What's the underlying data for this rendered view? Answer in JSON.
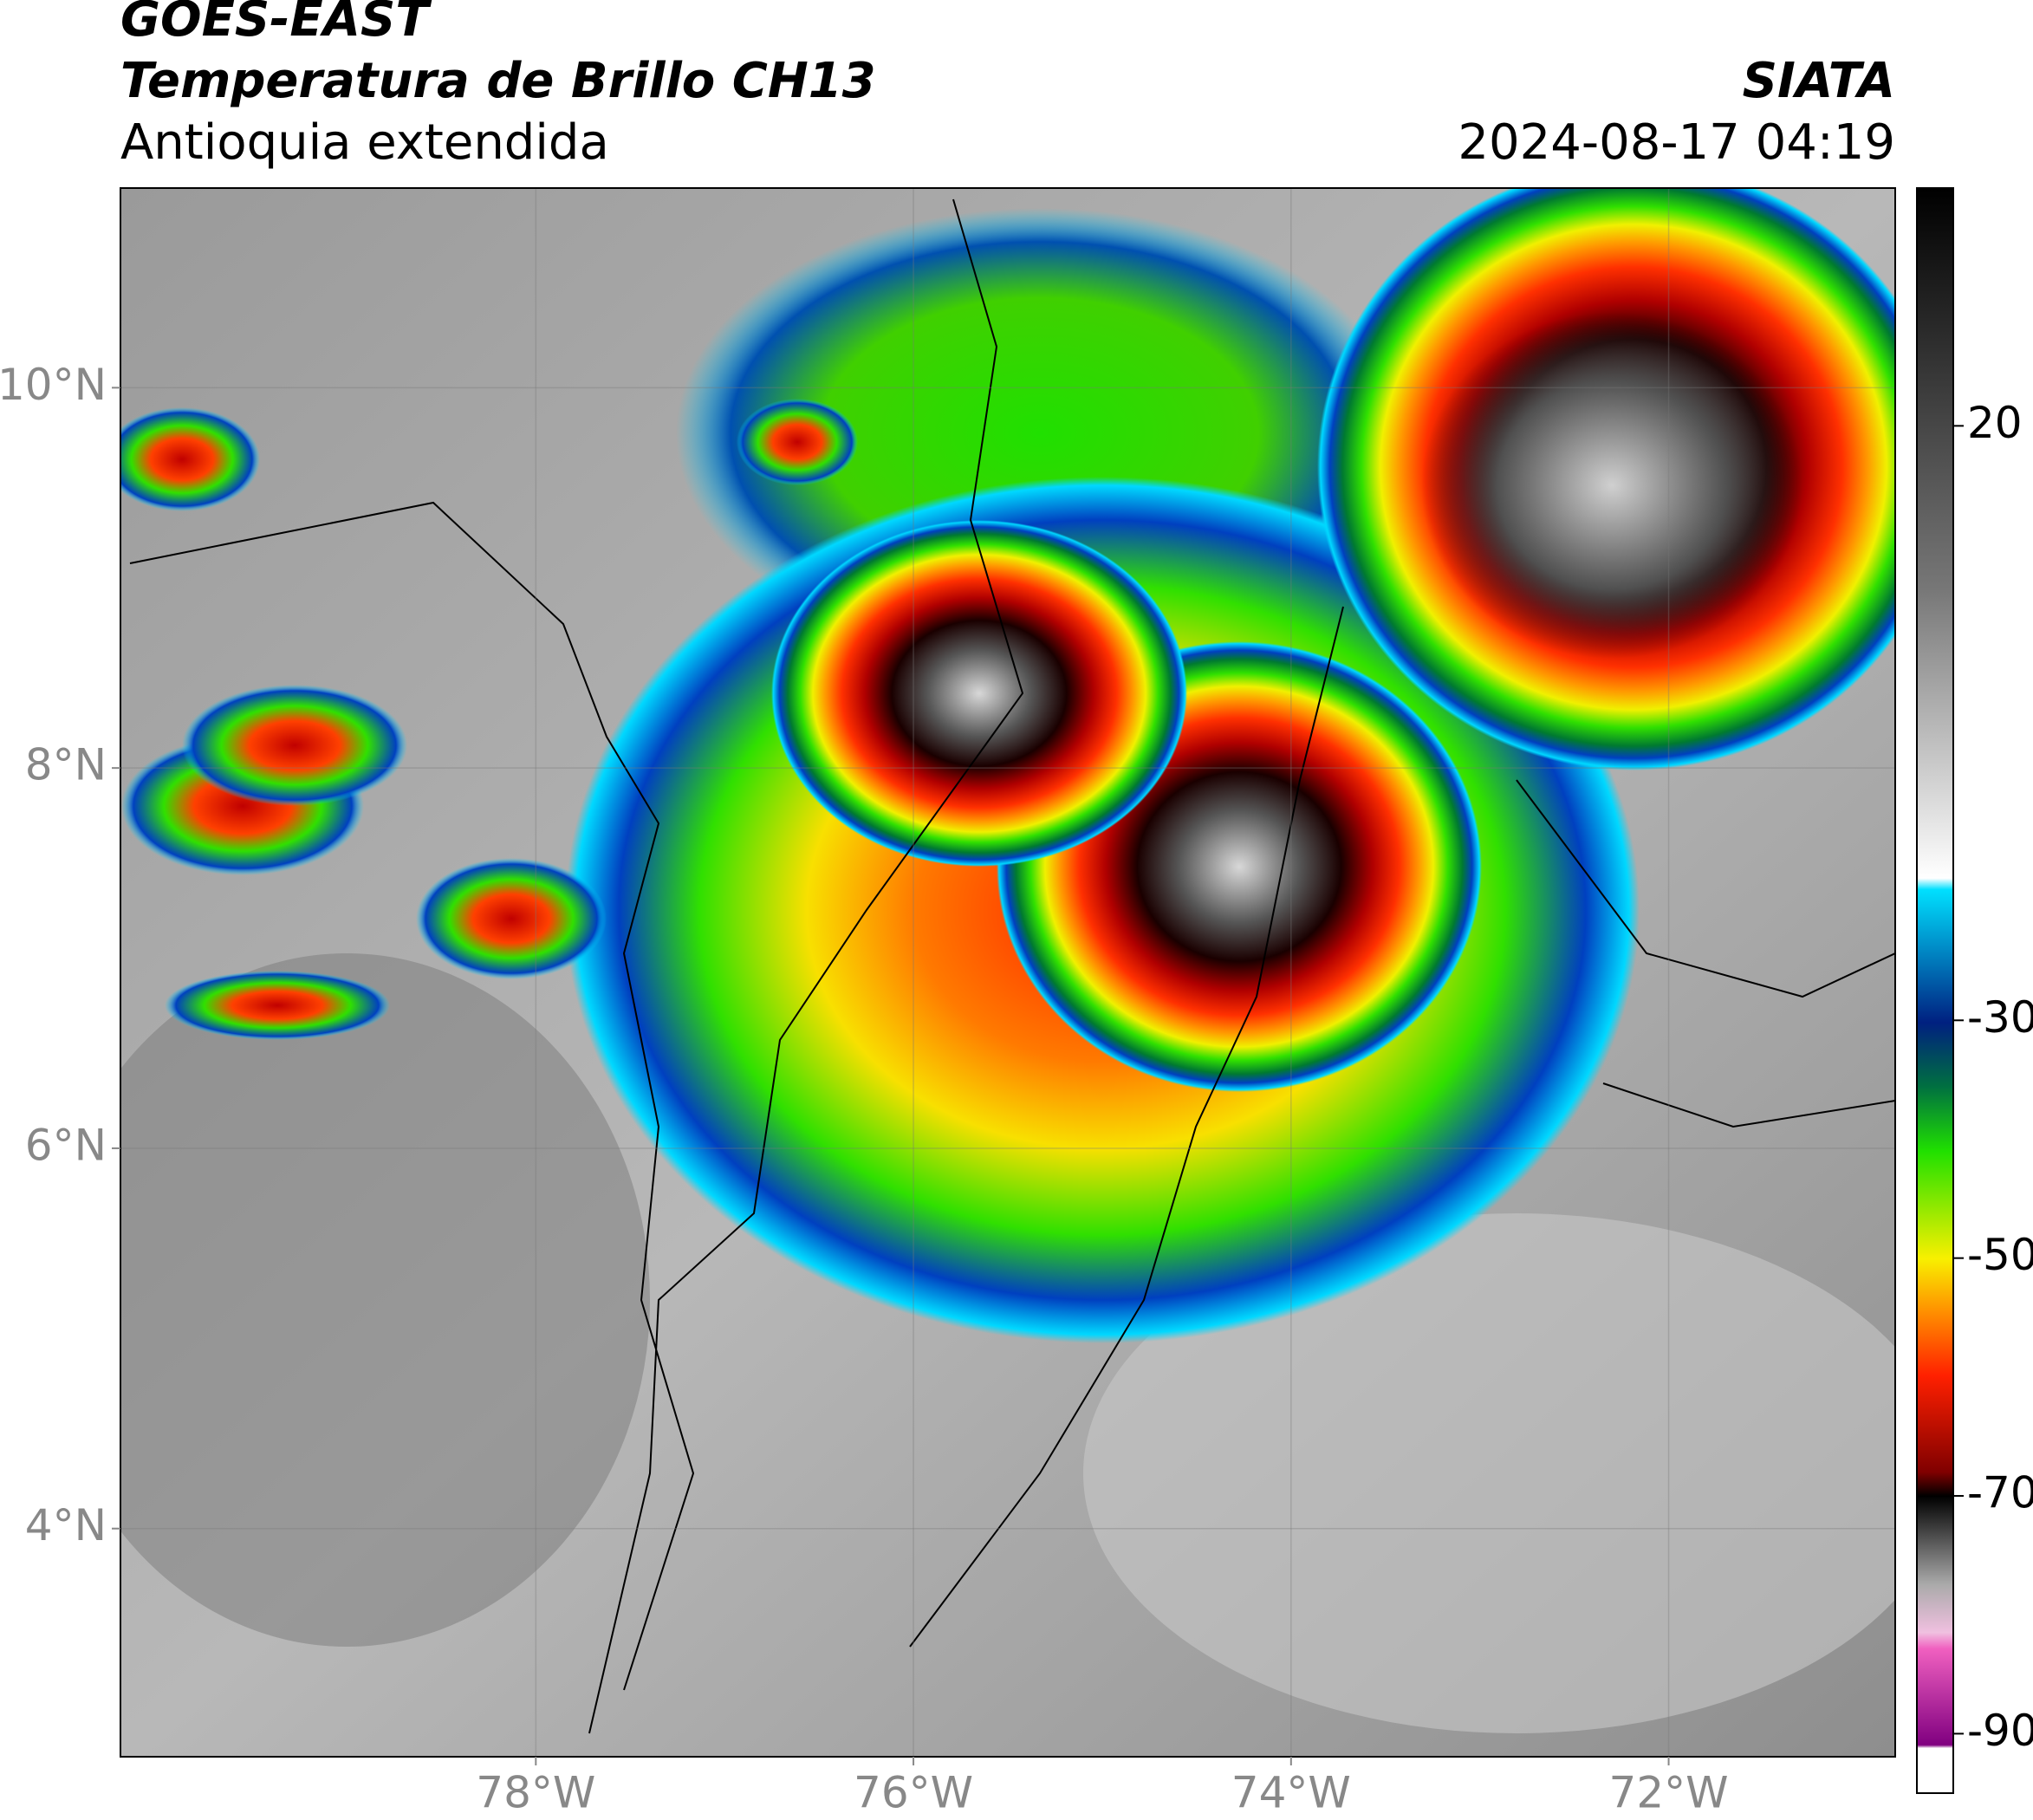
{
  "chart_data": {
    "type": "map",
    "title": "GOES-EAST",
    "subtitle": "Temperatura de Brillo CH13",
    "region": "Antioquia extendida",
    "source": "SIATA",
    "datetime": "2024-08-17 04:19",
    "xlim": [
      -80.2,
      -70.8
    ],
    "ylim": [
      2.8,
      11.05
    ],
    "xticks": [
      {
        "value": -78,
        "label": "78°W"
      },
      {
        "value": -76,
        "label": "76°W"
      },
      {
        "value": -74,
        "label": "74°W"
      },
      {
        "value": -72,
        "label": "72°W"
      }
    ],
    "yticks": [
      {
        "value": 10,
        "label": "10°N"
      },
      {
        "value": 8,
        "label": "8°N"
      },
      {
        "value": 6,
        "label": "6°N"
      },
      {
        "value": 4,
        "label": "4°N"
      }
    ],
    "grid": true,
    "colorbar": {
      "lim": [
        -95,
        40
      ],
      "ticks": [
        20,
        -30,
        -50,
        -70,
        -90
      ]
    }
  }
}
